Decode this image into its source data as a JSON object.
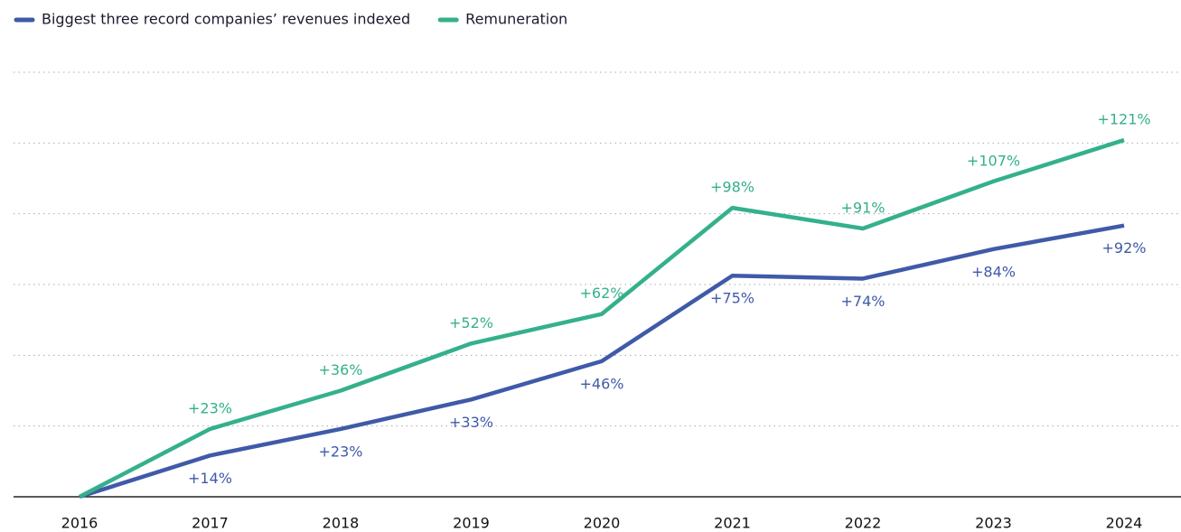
{
  "chart_data": {
    "type": "line",
    "categories": [
      "2016",
      "2017",
      "2018",
      "2019",
      "2020",
      "2021",
      "2022",
      "2023",
      "2024"
    ],
    "series": [
      {
        "name": "Biggest three record companies’ revenues indexed",
        "color": "#3f5aa8",
        "values": [
          0,
          14,
          23,
          33,
          46,
          75,
          74,
          84,
          92
        ],
        "value_labels": [
          null,
          "+14%",
          "+23%",
          "+33%",
          "+46%",
          "+75%",
          "+74%",
          "+84%",
          "+92%"
        ]
      },
      {
        "name": "Remuneration",
        "color": "#34b08c",
        "values": [
          0,
          23,
          36,
          52,
          62,
          98,
          91,
          107,
          121
        ],
        "value_labels": [
          null,
          "+23%",
          "+36%",
          "+52%",
          "+62%",
          "+98%",
          "+91%",
          "+107%",
          "+121%"
        ]
      }
    ],
    "ylim": [
      0,
      144
    ],
    "yticks": [
      0,
      24,
      48,
      72,
      96,
      120,
      144
    ],
    "grid": true
  }
}
